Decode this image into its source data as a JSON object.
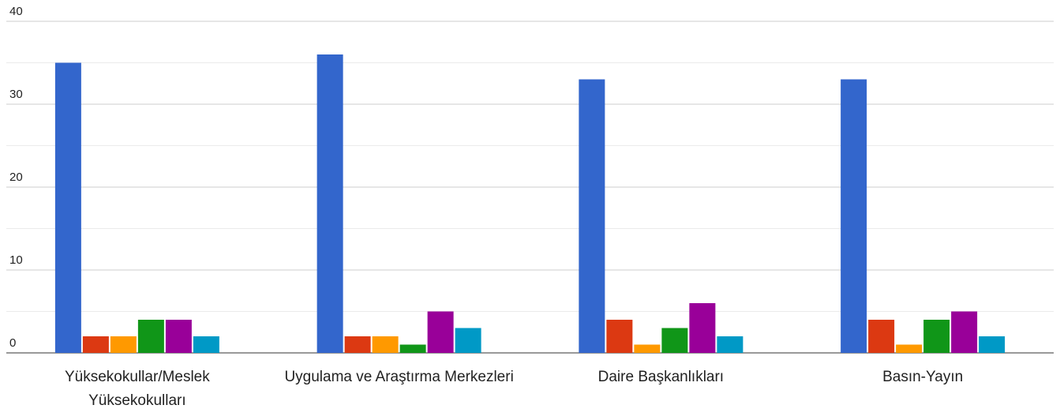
{
  "chart_data": {
    "type": "bar",
    "categories": [
      "Yüksekokullar/Meslek Yüksekokulları",
      "Uygulama ve Araştırma Merkezleri",
      "Daire Başkanlıkları",
      "Basın-Yayın"
    ],
    "series": [
      {
        "color": "#3366cc",
        "values": [
          35,
          36,
          33,
          33
        ]
      },
      {
        "color": "#dc3912",
        "values": [
          2,
          2,
          4,
          4
        ]
      },
      {
        "color": "#ff9900",
        "values": [
          2,
          2,
          1,
          1
        ]
      },
      {
        "color": "#109618",
        "values": [
          4,
          1,
          3,
          4
        ]
      },
      {
        "color": "#990099",
        "values": [
          4,
          5,
          6,
          5
        ]
      },
      {
        "color": "#0099c6",
        "values": [
          2,
          3,
          2,
          2
        ]
      }
    ],
    "ylim": [
      0,
      40
    ],
    "yticks": [
      0,
      10,
      20,
      30,
      40
    ],
    "minor_yticks": [
      5,
      15,
      25,
      35
    ],
    "grid": true
  }
}
